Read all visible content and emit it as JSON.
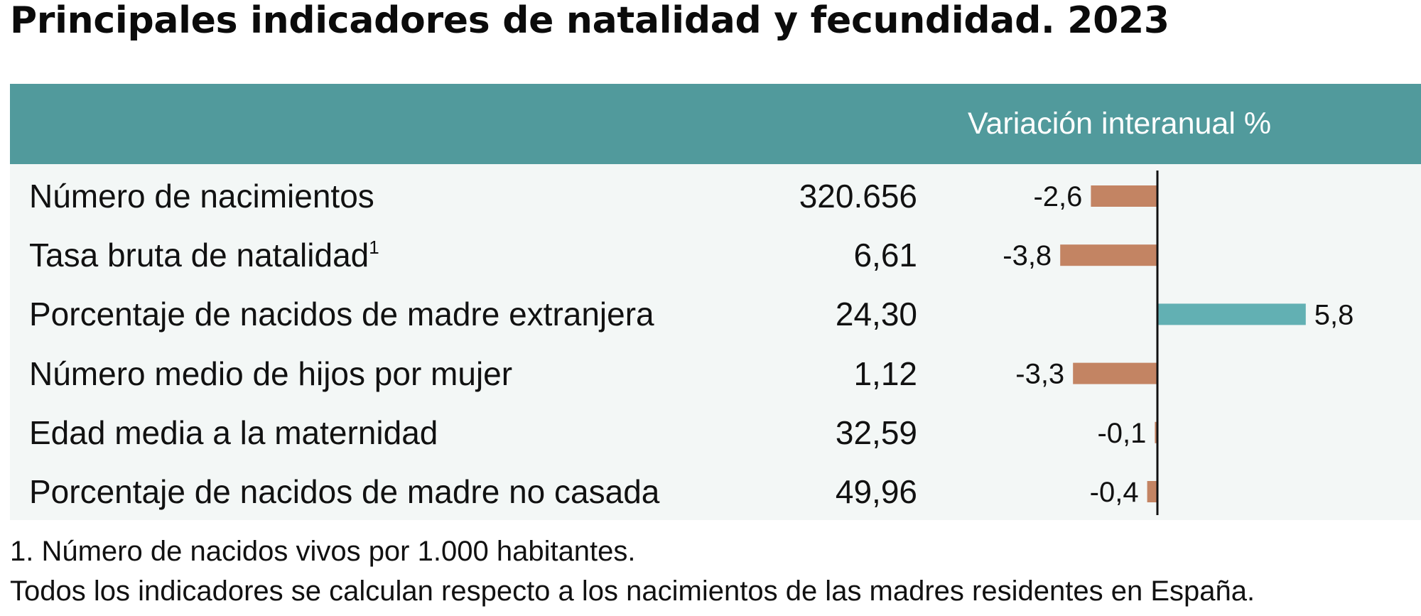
{
  "title": "Principales indicadores de natalidad y fecundidad. 2023",
  "header": {
    "variation_label": "Variación interanual %"
  },
  "footnotes": [
    "1. Número de nacidos vivos por 1.000 habitantes.",
    "Todos los indicadores se calculan respecto a los nacimientos de las madres residentes en España."
  ],
  "colors": {
    "header_band": "#519a9c",
    "body_background": "#f3f7f6",
    "negative_bar": "#c38463",
    "positive_bar": "#62b0b3",
    "zero_line": "#111111"
  },
  "chart_data": {
    "type": "table",
    "rows": [
      {
        "label": "Número de nacimientos",
        "footnote_mark": "",
        "value": "320.656",
        "variation": -2.6,
        "variation_label": "-2,6"
      },
      {
        "label": "Tasa bruta de natalidad",
        "footnote_mark": "1",
        "value": "6,61",
        "variation": -3.8,
        "variation_label": "-3,8"
      },
      {
        "label": "Porcentaje de nacidos de madre extranjera",
        "footnote_mark": "",
        "value": "24,30",
        "variation": 5.8,
        "variation_label": "5,8"
      },
      {
        "label": "Número medio de hijos por mujer",
        "footnote_mark": "",
        "value": "1,12",
        "variation": -3.3,
        "variation_label": "-3,3"
      },
      {
        "label": "Edad media a la maternidad",
        "footnote_mark": "",
        "value": "32,59",
        "variation": -0.1,
        "variation_label": "-0,1"
      },
      {
        "label": "Porcentaje de nacidos de madre no casada",
        "footnote_mark": "",
        "value": "49,96",
        "variation": -0.4,
        "variation_label": "-0,4"
      }
    ]
  }
}
